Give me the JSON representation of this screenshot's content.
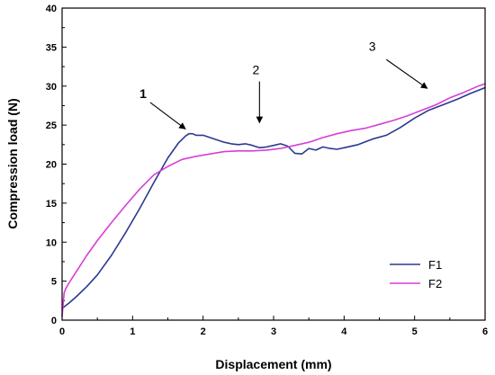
{
  "chart_data": {
    "type": "line",
    "xlabel": "Displacement (mm)",
    "ylabel": "Compression load (N)",
    "xlim": [
      0,
      6
    ],
    "ylim": [
      0,
      40
    ],
    "x_ticks": [
      "0",
      "1",
      "2",
      "3",
      "4",
      "5",
      "6"
    ],
    "y_ticks": [
      "0",
      "5",
      "10",
      "15",
      "20",
      "25",
      "30",
      "35",
      "40"
    ],
    "grid": false,
    "legend_position": "bottom-right",
    "series": [
      {
        "name": "F1",
        "color": "#2b3990",
        "x": [
          0,
          0.1,
          0.2,
          0.35,
          0.5,
          0.7,
          0.9,
          1.1,
          1.3,
          1.5,
          1.65,
          1.75,
          1.8,
          1.85,
          1.9,
          2.0,
          2.1,
          2.2,
          2.3,
          2.4,
          2.5,
          2.6,
          2.7,
          2.8,
          2.9,
          3.0,
          3.1,
          3.2,
          3.3,
          3.4,
          3.5,
          3.6,
          3.7,
          3.8,
          3.9,
          4.0,
          4.2,
          4.4,
          4.6,
          4.8,
          5.0,
          5.2,
          5.4,
          5.6,
          5.8,
          6.0
        ],
        "y": [
          1.5,
          2.2,
          3.0,
          4.3,
          5.8,
          8.3,
          11.2,
          14.3,
          17.6,
          20.8,
          22.7,
          23.6,
          23.9,
          23.9,
          23.7,
          23.7,
          23.4,
          23.1,
          22.8,
          22.6,
          22.5,
          22.6,
          22.4,
          22.1,
          22.2,
          22.4,
          22.6,
          22.3,
          21.4,
          21.3,
          22.0,
          21.8,
          22.2,
          22.0,
          21.9,
          22.1,
          22.5,
          23.2,
          23.7,
          24.7,
          25.9,
          26.9,
          27.6,
          28.3,
          29.1,
          29.8
        ]
      },
      {
        "name": "F2",
        "color": "#d63fd6",
        "x": [
          0,
          0.03,
          0.05,
          0.1,
          0.2,
          0.35,
          0.5,
          0.7,
          0.9,
          1.1,
          1.3,
          1.5,
          1.7,
          1.9,
          2.1,
          2.3,
          2.5,
          2.7,
          2.9,
          3.1,
          3.3,
          3.5,
          3.7,
          3.9,
          4.1,
          4.3,
          4.5,
          4.7,
          4.9,
          5.1,
          5.3,
          5.5,
          5.7,
          5.9,
          6.0
        ],
        "y": [
          0.5,
          3.5,
          4.0,
          4.8,
          6.2,
          8.3,
          10.2,
          12.5,
          14.7,
          16.8,
          18.6,
          19.7,
          20.6,
          21.0,
          21.3,
          21.6,
          21.7,
          21.7,
          21.8,
          22.0,
          22.4,
          22.8,
          23.4,
          23.9,
          24.3,
          24.6,
          25.1,
          25.6,
          26.2,
          26.9,
          27.6,
          28.5,
          29.2,
          30.0,
          30.3
        ]
      }
    ],
    "annotations": [
      {
        "label": "1",
        "bold": true,
        "text_x": 1.15,
        "text_y": 28.5,
        "arrow_from": [
          1.25,
          27.9
        ],
        "arrow_to": [
          1.75,
          24.5
        ]
      },
      {
        "label": "2",
        "bold": false,
        "text_x": 2.75,
        "text_y": 31.5,
        "arrow_from": [
          2.8,
          30.6
        ],
        "arrow_to": [
          2.8,
          25.3
        ]
      },
      {
        "label": "3",
        "bold": false,
        "text_x": 4.4,
        "text_y": 34.5,
        "arrow_from": [
          4.6,
          33.4
        ],
        "arrow_to": [
          5.18,
          29.7
        ]
      }
    ]
  }
}
